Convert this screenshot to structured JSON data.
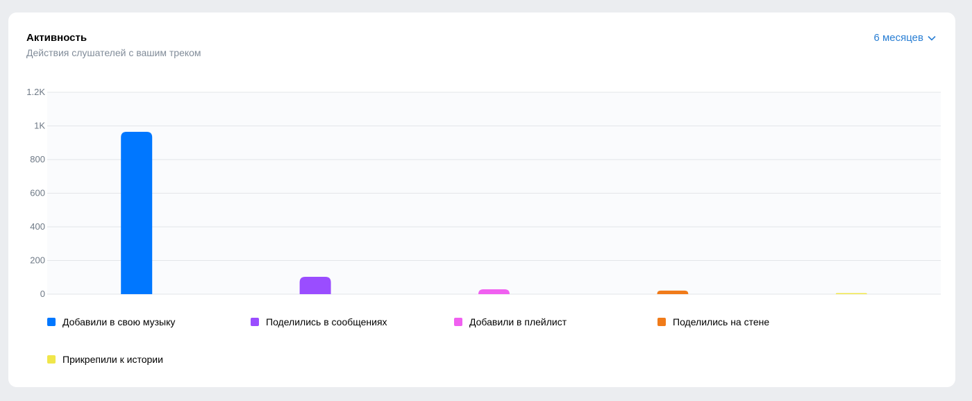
{
  "header": {
    "title": "Активность",
    "subtitle": "Действия слушателей с вашим треком",
    "period": "6 месяцев"
  },
  "chart_data": {
    "type": "bar",
    "categories": [
      "Добавили в свою музыку",
      "Поделились в сообщениях",
      "Добавили в плейлист",
      "Поделились на стене",
      "Прикрепили к истории"
    ],
    "values": [
      965,
      103,
      29,
      21,
      3
    ],
    "colors": [
      "#0077ff",
      "#9a4dff",
      "#f060f0",
      "#f07b1a",
      "#f0e64a"
    ],
    "ylim": [
      0,
      1200
    ],
    "yticks": [
      0,
      200,
      400,
      600,
      800,
      1000,
      1200
    ],
    "ytick_labels": [
      "0",
      "200",
      "400",
      "600",
      "800",
      "1K",
      "1.2K"
    ],
    "grid": true,
    "legend": "bottom"
  }
}
